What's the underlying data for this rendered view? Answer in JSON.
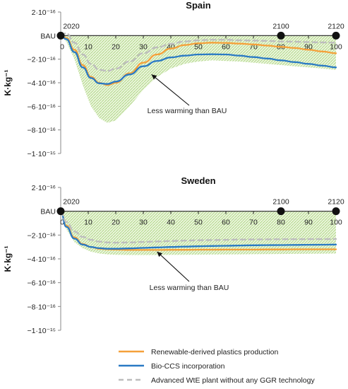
{
  "chart_data": [
    {
      "type": "line",
      "title": "Spain",
      "ylabel": "K·kg⁻¹",
      "xlim": [
        0,
        100
      ],
      "ylim": [
        -1e-15,
        2e-16
      ],
      "x_ticks": [
        0,
        10,
        20,
        30,
        40,
        50,
        60,
        70,
        80,
        90,
        100
      ],
      "y_ticks": [
        2e-16,
        0,
        -2e-16,
        -4e-16,
        -6e-16,
        -8e-16,
        -1e-15
      ],
      "y_tick_labels": [
        "2·10⁻¹⁶",
        "BAU",
        "−2·10⁻¹⁶",
        "−4·10⁻¹⁶",
        "−6·10⁻¹⁶",
        "−8·10⁻¹⁶",
        "−1·10⁻¹⁵"
      ],
      "year_markers": [
        {
          "x": 0,
          "label": "2020"
        },
        {
          "x": 80,
          "label": "2100"
        },
        {
          "x": 100,
          "label": "2120"
        }
      ],
      "annotation": {
        "text": "Less warming than BAU",
        "arrow_to": [
          33,
          -3.3e-16
        ]
      },
      "series": [
        {
          "name": "Renewable-derived plastics production",
          "color": "#f5a03a",
          "style": "solid",
          "x": [
            0,
            2,
            5,
            8,
            11,
            14,
            17,
            20,
            25,
            30,
            35,
            40,
            45,
            50,
            55,
            60,
            65,
            70,
            75,
            80,
            85,
            90,
            95,
            100
          ],
          "y": [
            0,
            -2e-17,
            -1.2e-16,
            -2.5e-16,
            -3.5e-16,
            -4e-16,
            -4.2e-16,
            -4e-16,
            -3.2e-16,
            -2.3e-16,
            -1.6e-16,
            -1.1e-16,
            -8e-17,
            -6.5e-17,
            -6e-17,
            -6.2e-17,
            -6.8e-17,
            -7.5e-17,
            -8.5e-17,
            -9.5e-17,
            -1.05e-16,
            -1.2e-16,
            -1.35e-16,
            -1.5e-16
          ]
        },
        {
          "name": "Bio-CCS incorporation",
          "color": "#2a7ac4",
          "style": "solid",
          "x": [
            0,
            2,
            5,
            8,
            11,
            14,
            17,
            20,
            25,
            30,
            35,
            40,
            45,
            50,
            55,
            60,
            65,
            70,
            75,
            80,
            85,
            90,
            95,
            100
          ],
          "y": [
            0,
            -3e-17,
            -1.4e-16,
            -2.7e-16,
            -3.6e-16,
            -4.05e-16,
            -4.1e-16,
            -3.9e-16,
            -3.3e-16,
            -2.6e-16,
            -2.15e-16,
            -1.85e-16,
            -1.7e-16,
            -1.6e-16,
            -1.58e-16,
            -1.6e-16,
            -1.7e-16,
            -1.82e-16,
            -1.95e-16,
            -2.1e-16,
            -2.25e-16,
            -2.4e-16,
            -2.55e-16,
            -2.7e-16
          ]
        },
        {
          "name": "Advanced WtE plant without any GGR technology",
          "color": "#bdbdbd",
          "style": "dashed",
          "x": [
            0,
            2,
            5,
            8,
            11,
            14,
            17,
            20,
            25,
            30,
            35,
            40,
            45,
            50,
            55,
            60,
            65,
            70,
            75,
            80,
            85,
            90,
            95,
            100
          ],
          "y": [
            0,
            2e-17,
            -6e-17,
            -1.6e-16,
            -2.4e-16,
            -2.9e-16,
            -3e-16,
            -2.8e-16,
            -2.2e-16,
            -1.5e-16,
            -1e-16,
            -7e-17,
            -5e-17,
            -4e-17,
            -3.5e-17,
            -3.5e-17,
            -4e-17,
            -4.2e-17,
            -4.5e-17,
            -5e-17,
            -5.2e-17,
            -5.5e-17,
            -5.8e-17,
            -6e-17
          ]
        }
      ],
      "shaded_band": {
        "color": "#c7e3a3",
        "x": [
          0,
          2,
          5,
          8,
          11,
          14,
          17,
          20,
          25,
          30,
          35,
          40,
          45,
          50,
          55,
          60,
          65,
          70,
          75,
          80,
          85,
          90,
          95,
          100
        ],
        "lower": [
          0,
          -5e-17,
          -2e-16,
          -4.2e-16,
          -6e-16,
          -7e-16,
          -7.4e-16,
          -7.2e-16,
          -6e-16,
          -4.6e-16,
          -3.5e-16,
          -2.8e-16,
          -2.4e-16,
          -2.2e-16,
          -2.1e-16,
          -2.15e-16,
          -2.2e-16,
          -2.3e-16,
          -2.4e-16,
          -2.5e-16,
          -2.6e-16,
          -2.7e-16,
          -2.8e-16,
          -2.9e-16
        ]
      }
    },
    {
      "type": "line",
      "title": "Sweden",
      "ylabel": "K·kg⁻¹",
      "xlim": [
        0,
        100
      ],
      "ylim": [
        -1e-15,
        2e-16
      ],
      "x_ticks": [
        0,
        10,
        20,
        30,
        40,
        50,
        60,
        70,
        80,
        90,
        100
      ],
      "y_ticks": [
        2e-16,
        0,
        -2e-16,
        -4e-16,
        -6e-16,
        -8e-16,
        -1e-15
      ],
      "y_tick_labels": [
        "2·10⁻¹⁶",
        "BAU",
        "−2·10⁻¹⁶",
        "−4·10⁻¹⁶",
        "−6·10⁻¹⁶",
        "−8·10⁻¹⁶",
        "−1·10⁻¹⁵"
      ],
      "year_markers": [
        {
          "x": 0,
          "label": "2020"
        },
        {
          "x": 80,
          "label": "2100"
        },
        {
          "x": 100,
          "label": "2120"
        }
      ],
      "annotation": {
        "text": "Less warming than BAU",
        "arrow_to": [
          35,
          -3.4e-16
        ]
      },
      "series": [
        {
          "name": "Renewable-derived plastics production",
          "color": "#f5a03a",
          "style": "solid",
          "x": [
            0,
            2,
            5,
            8,
            11,
            14,
            17,
            20,
            25,
            30,
            35,
            40,
            45,
            50,
            55,
            60,
            65,
            70,
            75,
            80,
            85,
            90,
            95,
            100
          ],
          "y": [
            0,
            -1.2e-16,
            -2.2e-16,
            -2.75e-16,
            -3e-16,
            -3.15e-16,
            -3.2e-16,
            -3.22e-16,
            -3.25e-16,
            -3.25e-16,
            -3.25e-16,
            -3.24e-16,
            -3.24e-16,
            -3.23e-16,
            -3.23e-16,
            -3.22e-16,
            -3.22e-16,
            -3.22e-16,
            -3.21e-16,
            -3.21e-16,
            -3.2e-16,
            -3.2e-16,
            -3.2e-16,
            -3.2e-16
          ]
        },
        {
          "name": "Bio-CCS incorporation",
          "color": "#2a7ac4",
          "style": "solid",
          "x": [
            0,
            2,
            5,
            8,
            11,
            14,
            17,
            20,
            25,
            30,
            35,
            40,
            45,
            50,
            55,
            60,
            65,
            70,
            75,
            80,
            85,
            90,
            95,
            100
          ],
          "y": [
            0,
            -1.3e-16,
            -2.3e-16,
            -2.8e-16,
            -3e-16,
            -3.1e-16,
            -3.15e-16,
            -3.15e-16,
            -3.12e-16,
            -3.08e-16,
            -3.04e-16,
            -3e-16,
            -2.97e-16,
            -2.94e-16,
            -2.92e-16,
            -2.9e-16,
            -2.88e-16,
            -2.86e-16,
            -2.85e-16,
            -2.84e-16,
            -2.83e-16,
            -2.82e-16,
            -2.81e-16,
            -2.8e-16
          ]
        },
        {
          "name": "Advanced WtE plant without any GGR technology",
          "color": "#bdbdbd",
          "style": "dashed",
          "x": [
            0,
            2,
            5,
            8,
            11,
            14,
            17,
            20,
            25,
            30,
            35,
            40,
            45,
            50,
            55,
            60,
            65,
            70,
            75,
            80,
            85,
            90,
            95,
            100
          ],
          "y": [
            0,
            -9e-17,
            -1.7e-16,
            -2.15e-16,
            -2.4e-16,
            -2.55e-16,
            -2.62e-16,
            -2.64e-16,
            -2.62e-16,
            -2.58e-16,
            -2.54e-16,
            -2.5e-16,
            -2.47e-16,
            -2.44e-16,
            -2.42e-16,
            -2.4e-16,
            -2.38e-16,
            -2.37e-16,
            -2.36e-16,
            -2.35e-16,
            -2.35e-16,
            -2.34e-16,
            -2.34e-16,
            -2.33e-16
          ]
        }
      ],
      "shaded_band": {
        "color": "#c7e3a3",
        "x": [
          0,
          2,
          5,
          8,
          11,
          14,
          17,
          20,
          25,
          30,
          35,
          40,
          45,
          50,
          55,
          60,
          65,
          70,
          75,
          80,
          85,
          90,
          95,
          100
        ],
        "lower": [
          0,
          -1.5e-16,
          -2.6e-16,
          -3.1e-16,
          -3.4e-16,
          -3.55e-16,
          -3.62e-16,
          -3.66e-16,
          -3.68e-16,
          -3.68e-16,
          -3.68e-16,
          -3.67e-16,
          -3.66e-16,
          -3.65e-16,
          -3.64e-16,
          -3.63e-16,
          -3.62e-16,
          -3.61e-16,
          -3.6e-16,
          -3.59e-16,
          -3.58e-16,
          -3.57e-16,
          -3.56e-16,
          -3.55e-16
        ]
      }
    }
  ],
  "legend": [
    {
      "label": "Renewable-derived plastics production",
      "color": "#f5a03a",
      "style": "solid"
    },
    {
      "label": "Bio-CCS incorporation",
      "color": "#2a7ac4",
      "style": "solid"
    },
    {
      "label": "Advanced WtE plant without any GGR technology",
      "color": "#bdbdbd",
      "style": "dashed"
    }
  ]
}
